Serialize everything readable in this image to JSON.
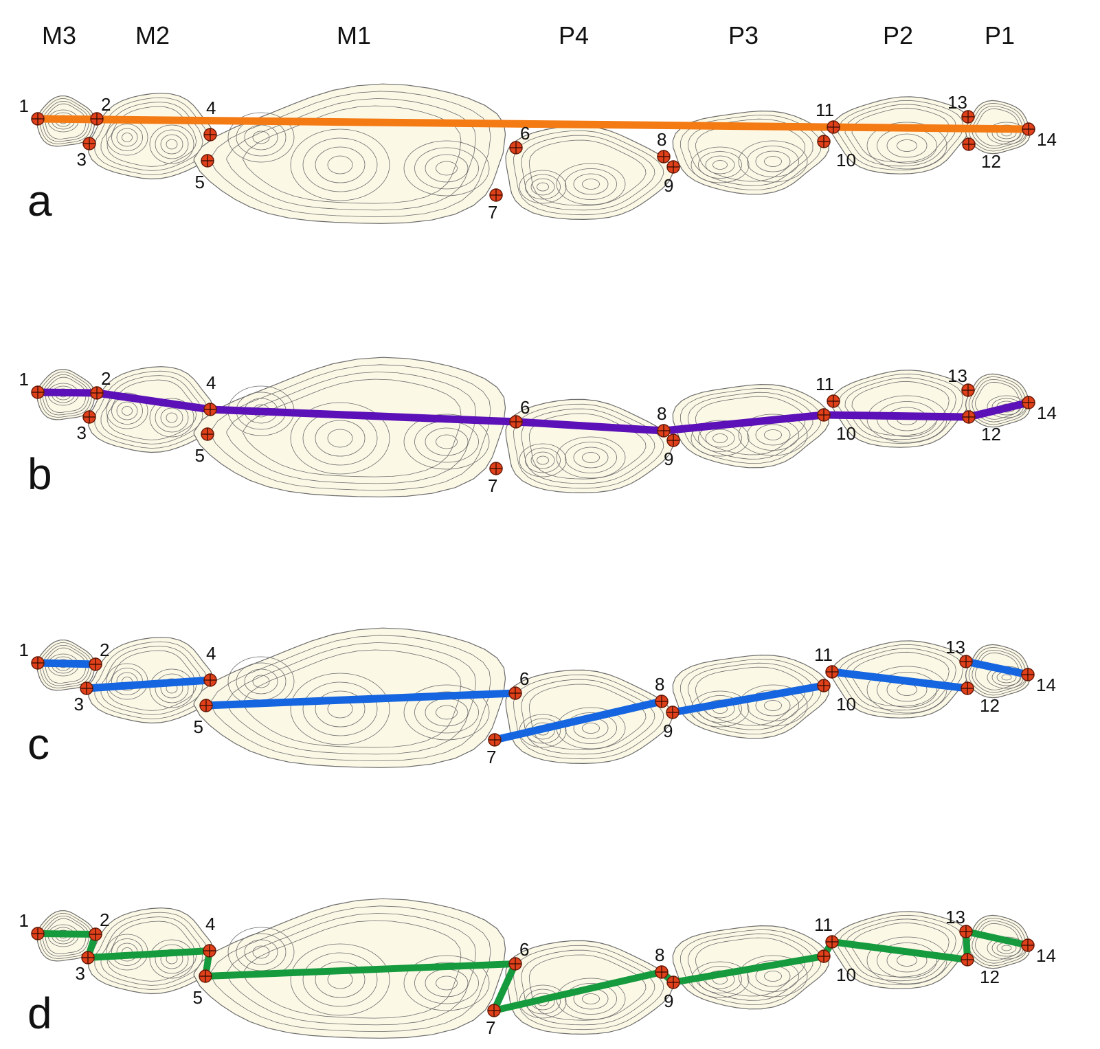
{
  "figure": {
    "tooth_labels": [
      "M3",
      "M2",
      "M1",
      "P4",
      "P3",
      "P2",
      "P1"
    ],
    "landmark_ids": [
      "1",
      "2",
      "3",
      "4",
      "5",
      "6",
      "7",
      "8",
      "9",
      "10",
      "11",
      "12",
      "13",
      "14"
    ],
    "colors": {
      "tooth_fill": "#fbf8e6",
      "contour": "#6b6b6b",
      "landmark": "#e0401a",
      "a": "#f47a14",
      "b": "#5b10b8",
      "c": "#1565e0",
      "d": "#169a3e"
    },
    "panels": [
      {
        "id": "a",
        "label": "a",
        "measure": "single-line"
      },
      {
        "id": "b",
        "label": "b",
        "measure": "polyline"
      },
      {
        "id": "c",
        "label": "c",
        "measure": "segments"
      },
      {
        "id": "d",
        "label": "d",
        "measure": "zigzag"
      }
    ]
  }
}
